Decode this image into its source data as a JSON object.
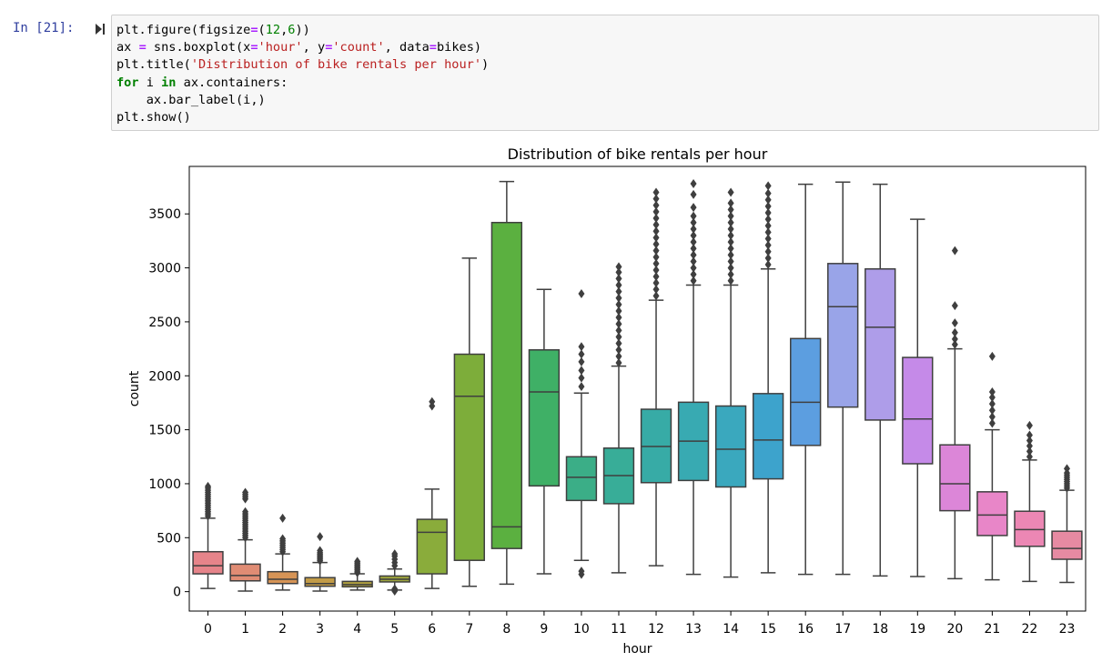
{
  "cell": {
    "prompt": "In [21]:",
    "code_lines": [
      [
        {
          "t": "plt.figure(figsize"
        },
        {
          "t": "=",
          "k": "op"
        },
        {
          "t": "("
        },
        {
          "t": "12",
          "k": "num"
        },
        {
          "t": ","
        },
        {
          "t": "6",
          "k": "num"
        },
        {
          "t": "))"
        }
      ],
      [
        {
          "t": "ax "
        },
        {
          "t": "=",
          "k": "op"
        },
        {
          "t": " sns.boxplot(x"
        },
        {
          "t": "=",
          "k": "op"
        },
        {
          "t": "'hour'",
          "k": "str"
        },
        {
          "t": ", y"
        },
        {
          "t": "=",
          "k": "op"
        },
        {
          "t": "'count'",
          "k": "str"
        },
        {
          "t": ", data"
        },
        {
          "t": "=",
          "k": "op"
        },
        {
          "t": "bikes)"
        }
      ],
      [
        {
          "t": "plt.title("
        },
        {
          "t": "'Distribution of bike rentals per hour'",
          "k": "str"
        },
        {
          "t": ")"
        }
      ],
      [
        {
          "t": "for",
          "k": "kw"
        },
        {
          "t": " i "
        },
        {
          "t": "in",
          "k": "kw"
        },
        {
          "t": " ax.containers:"
        }
      ],
      [
        {
          "t": "    ax.bar_label(i,)"
        }
      ],
      [
        {
          "t": "plt.show()"
        }
      ]
    ]
  },
  "chart_data": {
    "type": "box",
    "title": "Distribution of bike rentals per hour",
    "xlabel": "hour",
    "ylabel": "count",
    "ylim": [
      -180,
      3940
    ],
    "yticks": [
      0,
      500,
      1000,
      1500,
      2000,
      2500,
      3000,
      3500
    ],
    "categories": [
      "0",
      "1",
      "2",
      "3",
      "4",
      "5",
      "6",
      "7",
      "8",
      "9",
      "10",
      "11",
      "12",
      "13",
      "14",
      "15",
      "16",
      "17",
      "18",
      "19",
      "20",
      "21",
      "22",
      "23"
    ],
    "colors": [
      "#e6848a",
      "#e08c74",
      "#d69456",
      "#c29b47",
      "#b0a040",
      "#9fa63d",
      "#8aac3b",
      "#7dad3a",
      "#5bb040",
      "#3fb066",
      "#3bae87",
      "#38ad98",
      "#37aba6",
      "#38aab2",
      "#3aa8be",
      "#3da3cc",
      "#5c9ee0",
      "#99a4e8",
      "#ae9de9",
      "#c58ae8",
      "#dc86d8",
      "#e886c8",
      "#ec87b4",
      "#e68aa2"
    ],
    "boxes": [
      {
        "whislo": 30,
        "q1": 165,
        "med": 240,
        "q3": 370,
        "whishi": 680,
        "fliers": [
          700,
          720,
          740,
          760,
          780,
          800,
          820,
          840,
          860,
          880,
          900,
          920,
          940,
          960,
          975
        ]
      },
      {
        "whislo": 5,
        "q1": 100,
        "med": 150,
        "q3": 255,
        "whishi": 480,
        "fliers": [
          500,
          520,
          540,
          560,
          580,
          600,
          620,
          640,
          660,
          680,
          700,
          720,
          740,
          860,
          880,
          900,
          920
        ]
      },
      {
        "whislo": 15,
        "q1": 75,
        "med": 115,
        "q3": 185,
        "whishi": 350,
        "fliers": [
          370,
          390,
          410,
          430,
          450,
          470,
          490,
          680
        ]
      },
      {
        "whislo": 5,
        "q1": 50,
        "med": 75,
        "q3": 130,
        "whishi": 270,
        "fliers": [
          285,
          300,
          315,
          330,
          345,
          360,
          380,
          510
        ]
      },
      {
        "whislo": 15,
        "q1": 45,
        "med": 65,
        "q3": 95,
        "whishi": 165,
        "fliers": [
          175,
          190,
          205,
          220,
          235,
          250,
          265,
          280
        ]
      },
      {
        "whislo": 15,
        "q1": 90,
        "med": 115,
        "q3": 145,
        "whishi": 210,
        "fliers": [
          5,
          25,
          240,
          270,
          300,
          330,
          350
        ]
      },
      {
        "whislo": 30,
        "q1": 165,
        "med": 550,
        "q3": 670,
        "whishi": 950,
        "fliers": [
          1720,
          1760
        ]
      },
      {
        "whislo": 50,
        "q1": 290,
        "med": 1810,
        "q3": 2200,
        "whishi": 3090,
        "fliers": []
      },
      {
        "whislo": 70,
        "q1": 400,
        "med": 600,
        "q3": 3420,
        "whishi": 3800,
        "fliers": []
      },
      {
        "whislo": 165,
        "q1": 980,
        "med": 1850,
        "q3": 2240,
        "whishi": 2800,
        "fliers": []
      },
      {
        "whislo": 290,
        "q1": 845,
        "med": 1060,
        "q3": 1250,
        "whishi": 1840,
        "fliers": [
          160,
          190,
          1900,
          1980,
          2050,
          2130,
          2200,
          2270,
          2760
        ]
      },
      {
        "whislo": 175,
        "q1": 815,
        "med": 1075,
        "q3": 1330,
        "whishi": 2090,
        "fliers": [
          2120,
          2180,
          2240,
          2300,
          2360,
          2420,
          2480,
          2540,
          2600,
          2660,
          2720,
          2780,
          2840,
          2900,
          2960,
          3010
        ]
      },
      {
        "whislo": 240,
        "q1": 1010,
        "med": 1345,
        "q3": 1690,
        "whishi": 2700,
        "fliers": [
          2740,
          2800,
          2860,
          2920,
          2980,
          3040,
          3100,
          3160,
          3220,
          3280,
          3340,
          3400,
          3460,
          3520,
          3580,
          3640,
          3700
        ]
      },
      {
        "whislo": 160,
        "q1": 1030,
        "med": 1395,
        "q3": 1755,
        "whishi": 2840,
        "fliers": [
          2880,
          2940,
          3000,
          3060,
          3120,
          3180,
          3240,
          3300,
          3360,
          3420,
          3480,
          3560,
          3680,
          3780
        ]
      },
      {
        "whislo": 135,
        "q1": 970,
        "med": 1320,
        "q3": 1720,
        "whishi": 2840,
        "fliers": [
          2880,
          2940,
          3000,
          3060,
          3120,
          3180,
          3240,
          3300,
          3360,
          3420,
          3480,
          3540,
          3600,
          3700
        ]
      },
      {
        "whislo": 175,
        "q1": 1045,
        "med": 1405,
        "q3": 1835,
        "whishi": 2990,
        "fliers": [
          3030,
          3090,
          3150,
          3210,
          3270,
          3330,
          3390,
          3450,
          3510,
          3570,
          3630,
          3690,
          3760
        ]
      },
      {
        "whislo": 160,
        "q1": 1355,
        "med": 1755,
        "q3": 2345,
        "whishi": 3775,
        "fliers": []
      },
      {
        "whislo": 160,
        "q1": 1710,
        "med": 2640,
        "q3": 3040,
        "whishi": 3795,
        "fliers": []
      },
      {
        "whislo": 145,
        "q1": 1590,
        "med": 2450,
        "q3": 2990,
        "whishi": 3775,
        "fliers": []
      },
      {
        "whislo": 140,
        "q1": 1185,
        "med": 1600,
        "q3": 2170,
        "whishi": 3450,
        "fliers": []
      },
      {
        "whislo": 120,
        "q1": 750,
        "med": 1000,
        "q3": 1360,
        "whishi": 2250,
        "fliers": [
          2290,
          2340,
          2400,
          2490,
          2650,
          3160
        ]
      },
      {
        "whislo": 110,
        "q1": 520,
        "med": 710,
        "q3": 925,
        "whishi": 1500,
        "fliers": [
          1560,
          1620,
          1680,
          1740,
          1800,
          1850,
          2180
        ]
      },
      {
        "whislo": 95,
        "q1": 420,
        "med": 575,
        "q3": 745,
        "whishi": 1220,
        "fliers": [
          1250,
          1300,
          1350,
          1400,
          1450,
          1540
        ]
      },
      {
        "whislo": 85,
        "q1": 300,
        "med": 400,
        "q3": 560,
        "whishi": 940,
        "fliers": [
          960,
          980,
          1000,
          1020,
          1040,
          1060,
          1080,
          1100,
          1140
        ]
      }
    ]
  }
}
